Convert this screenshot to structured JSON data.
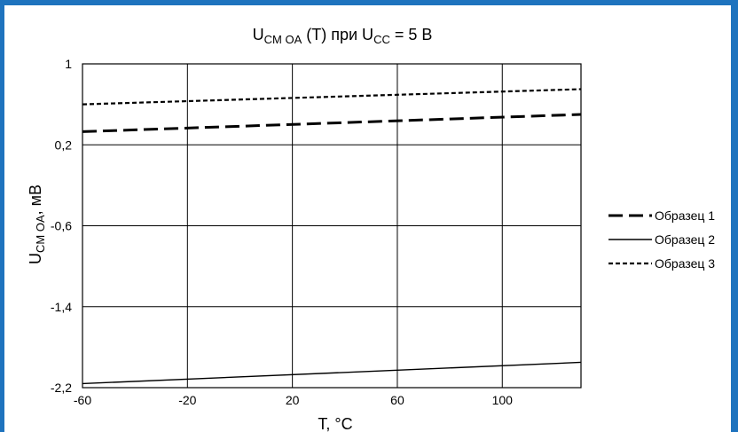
{
  "colors": {
    "frame_top": "#1E73BE",
    "frame_left": "#1E73BE",
    "frame_right": "#1E73BE",
    "plot_border": "#000000",
    "grid": "#000000",
    "series_color": "#000000"
  },
  "chart_data": {
    "type": "line",
    "title": {
      "main": "U",
      "sub": "CM OA",
      "rest1": " (T) при U",
      "sub2": "CC",
      "rest2": " = 5 В"
    },
    "xlabel": "T, °C",
    "ylabel": {
      "main": "U",
      "sub": "CM OA",
      "rest": ", мВ"
    },
    "xlim": [
      -60,
      130
    ],
    "ylim": [
      -2.2,
      1.0
    ],
    "xticks": [
      -60,
      -20,
      20,
      60,
      100
    ],
    "xtick_labels": [
      "-60",
      "-20",
      "20",
      "60",
      "100"
    ],
    "yticks": [
      1.0,
      0.2,
      -0.6,
      -1.4,
      -2.2
    ],
    "ytick_labels": [
      "1",
      "0,2",
      "-0,6",
      "-1,4",
      "-2,2"
    ],
    "grid": true,
    "legend_position": "right",
    "series": [
      {
        "name": "Образец 1",
        "dash": "long-dash",
        "x": [
          -60,
          130
        ],
        "y": [
          0.33,
          0.5
        ]
      },
      {
        "name": "Образец 2",
        "dash": "solid",
        "x": [
          -60,
          130
        ],
        "y": [
          -2.16,
          -1.95
        ]
      },
      {
        "name": "Образец 3",
        "dash": "short-dash",
        "x": [
          -60,
          130
        ],
        "y": [
          0.6,
          0.75
        ]
      }
    ]
  }
}
